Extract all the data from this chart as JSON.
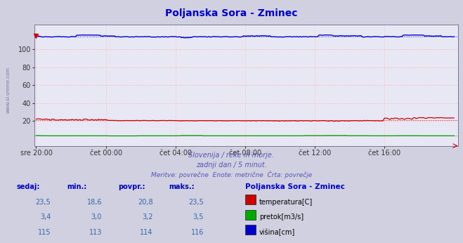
{
  "title": "Poljanska Sora - Zminec",
  "title_color": "#0000cc",
  "bg_color": "#d0d0e0",
  "plot_bg_color": "#e8e8f4",
  "grid_color_h": "#ffaaaa",
  "grid_color_v": "#ffbbbb",
  "x_tick_labels": [
    "sre 20:00",
    "čet 00:00",
    "čet 04:00",
    "čet 08:00",
    "čet 12:00",
    "čet 16:00"
  ],
  "x_tick_positions": [
    0,
    48,
    96,
    144,
    192,
    240
  ],
  "total_points": 289,
  "ylim": [
    -8,
    128
  ],
  "yticks": [
    20,
    40,
    60,
    80,
    100
  ],
  "watermark": "www.si-vreme.com",
  "subtitle1": "Slovenija / reke in morje.",
  "subtitle2": "zadnji dan / 5 minut.",
  "subtitle3": "Meritve: povrečne  Enote: metrične  Črta: povrečje",
  "subtitle_color": "#5555bb",
  "table_headers": [
    "sedaj:",
    "min.:",
    "povpr.:",
    "maks.:"
  ],
  "table_station": "Poljanska Sora - Zminec",
  "table_rows": [
    [
      "23,5",
      "18,6",
      "20,8",
      "23,5",
      "temperatura[C]",
      "#cc0000"
    ],
    [
      "3,4",
      "3,0",
      "3,2",
      "3,5",
      "pretok[m3/s]",
      "#00aa00"
    ],
    [
      "115",
      "113",
      "114",
      "116",
      "višina[cm]",
      "#0000cc"
    ]
  ],
  "temp_avg": 20.8,
  "flow_avg": 3.2,
  "height_avg": 114,
  "line_color_temp": "#cc0000",
  "line_color_flow": "#009900",
  "line_color_height": "#0000cc"
}
